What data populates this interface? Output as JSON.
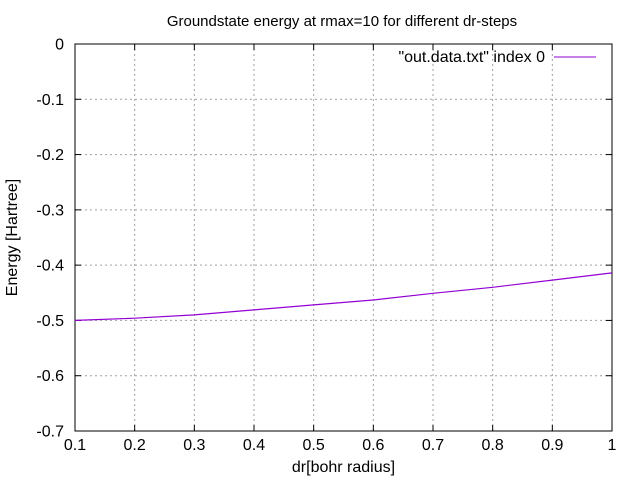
{
  "chart_data": {
    "type": "line",
    "title": "Groundstate energy at rmax=10 for different dr-steps",
    "xlabel": "dr[bohr radius]",
    "ylabel": "Energy [Hartree]",
    "xlim": [
      0.1,
      1.0
    ],
    "ylim": [
      -0.7,
      0.0
    ],
    "grid": true,
    "grid_style": "dotted",
    "legend_position": "top-right",
    "xticks": [
      {
        "value": 0.1,
        "label": "0.1"
      },
      {
        "value": 0.2,
        "label": "0.2"
      },
      {
        "value": 0.3,
        "label": "0.3"
      },
      {
        "value": 0.4,
        "label": "0.4"
      },
      {
        "value": 0.5,
        "label": "0.5"
      },
      {
        "value": 0.6,
        "label": "0.6"
      },
      {
        "value": 0.7,
        "label": "0.7"
      },
      {
        "value": 0.8,
        "label": "0.8"
      },
      {
        "value": 0.9,
        "label": "0.9"
      },
      {
        "value": 1.0,
        "label": "1"
      }
    ],
    "yticks": [
      {
        "value": 0.0,
        "label": "0"
      },
      {
        "value": -0.1,
        "label": "-0.1"
      },
      {
        "value": -0.2,
        "label": "-0.2"
      },
      {
        "value": -0.3,
        "label": "-0.3"
      },
      {
        "value": -0.4,
        "label": "-0.4"
      },
      {
        "value": -0.5,
        "label": "-0.5"
      },
      {
        "value": -0.6,
        "label": "-0.6"
      },
      {
        "value": -0.7,
        "label": "-0.7"
      }
    ],
    "series": [
      {
        "name": "\"out.data.txt\" index 0",
        "color": "#9400d3",
        "x": [
          0.1,
          0.2,
          0.3,
          0.4,
          0.5,
          0.6,
          0.7,
          0.8,
          0.9,
          1.0
        ],
        "y": [
          -0.5,
          -0.496,
          -0.49,
          -0.481,
          -0.472,
          -0.463,
          -0.451,
          -0.44,
          -0.427,
          -0.414
        ]
      }
    ]
  }
}
